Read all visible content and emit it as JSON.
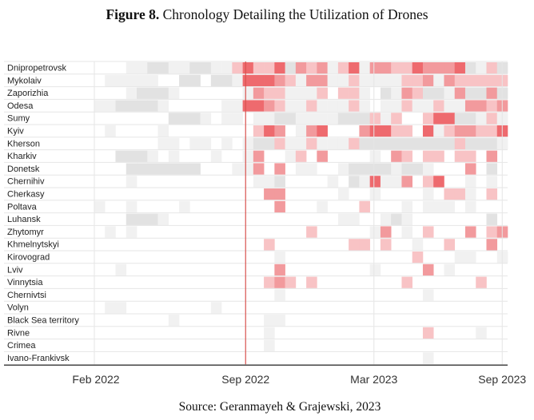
{
  "figure": {
    "label": "Figure 8.",
    "title": " Chronology Detailing the Utilization of Drones",
    "source": "Source: Geranmayeh & Grajewski, 2023"
  },
  "chart_data": {
    "type": "heatmap",
    "x_range": [
      "Feb 2022",
      "Sep 2023"
    ],
    "x_ticks": [
      "Feb 2022",
      "Sep 2022",
      "Mar 2023",
      "Sep 2023"
    ],
    "marker": "Sep 2022",
    "marker_color": "#d9534f",
    "grid": true,
    "color_scale": [
      "#ffffff",
      "#f1f1f1",
      "#e2e2e2",
      "#f8c3c5",
      "#f29a9d",
      "#ee6a6e"
    ],
    "rows": [
      "Dnipropetrovsk",
      "Mykolaiv",
      "Zaporizhia",
      "Odesa",
      "Sumy",
      "Kyiv",
      "Kherson",
      "Kharkiv",
      "Donetsk",
      "Chernihiv",
      "Cherkasy",
      "Poltava",
      "Luhansk",
      "Zhytomyr",
      "Khmelnytskyi",
      "Kirovograd",
      "Lviv",
      "Vinnytsia",
      "Chernivtsi",
      "Volyn",
      "Black Sea territory",
      "Rivne",
      "Crimea",
      "Ivano-Frankivsk"
    ],
    "values": [
      [
        0,
        0,
        0,
        1,
        1,
        2,
        2,
        1,
        1,
        2,
        2,
        1,
        1,
        3,
        5,
        3,
        3,
        5,
        2,
        4,
        3,
        4,
        1,
        3,
        5,
        1,
        4,
        4,
        3,
        3,
        5,
        4,
        4,
        4,
        5,
        2,
        1,
        3,
        2
      ],
      [
        0,
        1,
        1,
        1,
        1,
        1,
        0,
        0,
        2,
        2,
        0,
        2,
        2,
        1,
        5,
        5,
        5,
        4,
        3,
        1,
        4,
        4,
        1,
        1,
        3,
        1,
        1,
        1,
        1,
        3,
        3,
        4,
        1,
        4,
        3,
        3,
        3,
        3,
        3
      ],
      [
        0,
        0,
        0,
        1,
        2,
        2,
        2,
        1,
        0,
        0,
        0,
        0,
        0,
        0,
        1,
        4,
        3,
        3,
        1,
        1,
        1,
        3,
        0,
        3,
        3,
        1,
        0,
        2,
        1,
        4,
        3,
        2,
        2,
        1,
        4,
        2,
        2,
        4,
        2
      ],
      [
        1,
        1,
        2,
        2,
        2,
        2,
        1,
        0,
        0,
        0,
        0,
        0,
        1,
        1,
        5,
        5,
        4,
        3,
        1,
        1,
        3,
        1,
        1,
        1,
        3,
        1,
        0,
        1,
        1,
        3,
        1,
        1,
        3,
        1,
        1,
        4,
        4,
        3,
        4
      ],
      [
        0,
        0,
        0,
        0,
        0,
        0,
        0,
        2,
        2,
        2,
        1,
        0,
        1,
        1,
        0,
        1,
        1,
        2,
        2,
        1,
        1,
        1,
        1,
        2,
        2,
        2,
        3,
        1,
        3,
        0,
        0,
        3,
        5,
        5,
        2,
        2,
        1,
        3,
        1
      ],
      [
        0,
        1,
        0,
        0,
        0,
        0,
        1,
        0,
        0,
        0,
        0,
        0,
        0,
        0,
        0,
        3,
        5,
        4,
        0,
        1,
        4,
        5,
        0,
        0,
        0,
        4,
        5,
        5,
        3,
        3,
        0,
        5,
        1,
        3,
        4,
        4,
        3,
        3,
        5
      ],
      [
        0,
        0,
        0,
        0,
        0,
        0,
        1,
        1,
        0,
        1,
        1,
        0,
        1,
        0,
        1,
        2,
        2,
        3,
        1,
        1,
        3,
        1,
        1,
        1,
        3,
        2,
        2,
        2,
        2,
        2,
        2,
        2,
        2,
        2,
        3,
        2,
        2,
        2,
        1
      ],
      [
        0,
        0,
        2,
        2,
        2,
        1,
        0,
        1,
        0,
        0,
        0,
        1,
        0,
        0,
        1,
        4,
        0,
        0,
        1,
        3,
        0,
        4,
        0,
        0,
        0,
        0,
        1,
        0,
        4,
        3,
        0,
        3,
        3,
        0,
        3,
        3,
        0,
        4,
        0
      ],
      [
        0,
        0,
        0,
        2,
        2,
        2,
        2,
        2,
        2,
        2,
        0,
        0,
        0,
        1,
        1,
        4,
        0,
        4,
        0,
        1,
        1,
        0,
        0,
        1,
        2,
        2,
        2,
        2,
        1,
        2,
        2,
        1,
        0,
        0,
        0,
        4,
        0,
        2,
        0
      ],
      [
        0,
        0,
        0,
        1,
        0,
        0,
        0,
        0,
        0,
        0,
        0,
        0,
        0,
        0,
        0,
        1,
        1,
        2,
        0,
        0,
        0,
        0,
        1,
        0,
        2,
        1,
        5,
        1,
        1,
        4,
        0,
        3,
        5,
        0,
        0,
        1,
        0,
        1,
        0
      ],
      [
        0,
        0,
        0,
        0,
        0,
        0,
        0,
        0,
        0,
        0,
        0,
        0,
        0,
        0,
        0,
        0,
        4,
        4,
        0,
        0,
        0,
        0,
        0,
        1,
        0,
        0,
        1,
        0,
        0,
        0,
        0,
        1,
        0,
        3,
        3,
        1,
        0,
        3,
        0
      ],
      [
        1,
        0,
        0,
        1,
        0,
        0,
        0,
        0,
        1,
        0,
        0,
        0,
        0,
        0,
        0,
        0,
        0,
        4,
        0,
        0,
        0,
        1,
        0,
        0,
        0,
        3,
        0,
        0,
        0,
        1,
        0,
        1,
        1,
        1,
        0,
        1,
        0,
        0,
        0
      ],
      [
        0,
        0,
        0,
        2,
        2,
        2,
        1,
        0,
        0,
        0,
        0,
        0,
        0,
        0,
        0,
        0,
        0,
        0,
        0,
        0,
        0,
        0,
        0,
        1,
        1,
        0,
        0,
        1,
        2,
        1,
        0,
        0,
        0,
        0,
        0,
        0,
        0,
        2,
        0
      ],
      [
        0,
        1,
        0,
        1,
        0,
        0,
        0,
        0,
        0,
        0,
        0,
        0,
        0,
        0,
        0,
        0,
        0,
        0,
        0,
        0,
        3,
        0,
        0,
        0,
        0,
        0,
        1,
        4,
        0,
        1,
        0,
        3,
        0,
        0,
        0,
        4,
        0,
        3,
        4
      ],
      [
        0,
        0,
        0,
        0,
        0,
        0,
        0,
        0,
        0,
        0,
        0,
        0,
        0,
        0,
        0,
        0,
        3,
        0,
        0,
        0,
        0,
        0,
        0,
        0,
        3,
        3,
        0,
        3,
        0,
        0,
        1,
        0,
        0,
        3,
        0,
        0,
        0,
        4,
        0
      ],
      [
        0,
        0,
        0,
        0,
        0,
        0,
        0,
        0,
        0,
        0,
        0,
        0,
        0,
        0,
        0,
        0,
        0,
        1,
        0,
        0,
        0,
        0,
        0,
        0,
        0,
        0,
        0,
        0,
        0,
        0,
        3,
        0,
        0,
        0,
        1,
        1,
        0,
        0,
        1
      ],
      [
        0,
        0,
        1,
        0,
        0,
        0,
        0,
        0,
        0,
        0,
        0,
        0,
        0,
        0,
        0,
        0,
        0,
        4,
        0,
        0,
        0,
        0,
        0,
        0,
        0,
        0,
        1,
        0,
        0,
        0,
        0,
        4,
        0,
        1,
        0,
        0,
        0,
        0,
        0
      ],
      [
        0,
        0,
        0,
        0,
        0,
        0,
        0,
        0,
        0,
        0,
        0,
        0,
        0,
        0,
        0,
        0,
        3,
        4,
        3,
        0,
        3,
        0,
        0,
        0,
        0,
        0,
        0,
        0,
        0,
        3,
        0,
        0,
        0,
        0,
        0,
        0,
        3,
        0,
        0
      ],
      [
        0,
        0,
        0,
        0,
        0,
        0,
        0,
        0,
        0,
        0,
        0,
        0,
        0,
        0,
        0,
        0,
        0,
        1,
        0,
        0,
        0,
        0,
        0,
        0,
        0,
        0,
        0,
        0,
        0,
        0,
        0,
        1,
        0,
        0,
        0,
        0,
        0,
        0,
        0
      ],
      [
        0,
        1,
        1,
        0,
        0,
        0,
        0,
        0,
        0,
        0,
        0,
        1,
        0,
        0,
        0,
        0,
        0,
        0,
        0,
        0,
        0,
        0,
        0,
        0,
        0,
        0,
        0,
        0,
        0,
        0,
        0,
        0,
        0,
        0,
        0,
        0,
        0,
        0,
        0
      ],
      [
        0,
        0,
        0,
        0,
        0,
        0,
        0,
        1,
        0,
        0,
        0,
        0,
        0,
        0,
        0,
        0,
        1,
        1,
        0,
        0,
        0,
        0,
        0,
        0,
        0,
        0,
        0,
        0,
        0,
        0,
        0,
        0,
        0,
        0,
        0,
        0,
        0,
        0,
        0
      ],
      [
        0,
        0,
        0,
        0,
        0,
        0,
        0,
        0,
        0,
        0,
        0,
        0,
        0,
        0,
        0,
        0,
        1,
        0,
        0,
        0,
        0,
        0,
        0,
        0,
        0,
        0,
        0,
        0,
        0,
        0,
        0,
        3,
        0,
        0,
        0,
        0,
        1,
        0,
        0
      ],
      [
        0,
        0,
        0,
        0,
        0,
        0,
        0,
        0,
        0,
        0,
        0,
        0,
        0,
        0,
        0,
        0,
        1,
        0,
        0,
        0,
        0,
        0,
        0,
        0,
        0,
        0,
        0,
        0,
        0,
        0,
        0,
        0,
        0,
        0,
        0,
        0,
        0,
        0,
        0
      ],
      [
        0,
        0,
        0,
        0,
        0,
        0,
        0,
        0,
        0,
        0,
        0,
        0,
        0,
        0,
        0,
        0,
        0,
        0,
        0,
        0,
        0,
        0,
        0,
        0,
        0,
        0,
        0,
        0,
        0,
        0,
        0,
        1,
        0,
        0,
        0,
        0,
        0,
        0,
        0
      ]
    ]
  }
}
